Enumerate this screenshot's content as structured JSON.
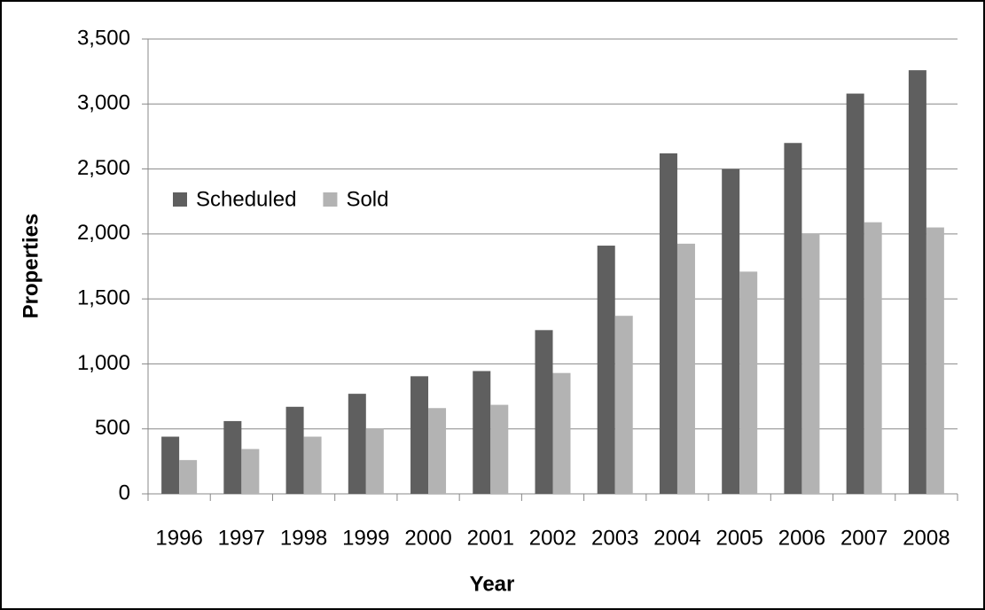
{
  "chart_data": {
    "type": "bar",
    "x_label": "Year",
    "y_label": "Properties",
    "categories": [
      "1996",
      "1997",
      "1998",
      "1999",
      "2000",
      "2001",
      "2002",
      "2003",
      "2004",
      "2005",
      "2006",
      "2007",
      "2008"
    ],
    "series": [
      {
        "name": "Scheduled",
        "color": "#5f5f5f",
        "values": [
          440,
          560,
          670,
          770,
          905,
          945,
          1260,
          1910,
          2620,
          2500,
          2700,
          3080,
          3260
        ]
      },
      {
        "name": "Sold",
        "color": "#b3b3b3",
        "values": [
          260,
          345,
          440,
          505,
          660,
          685,
          930,
          1370,
          1925,
          1710,
          2005,
          2090,
          2050
        ]
      }
    ],
    "ylim": [
      0,
      3500
    ],
    "yticks": [
      0,
      500,
      {
        "value": 1000,
        "label": "1,000"
      },
      {
        "value": 1500,
        "label": "1,500"
      },
      {
        "value": 2000,
        "label": "2,000"
      },
      {
        "value": 2500,
        "label": "2,500"
      },
      {
        "value": 3000,
        "label": "3,000"
      },
      {
        "value": 3500,
        "label": "3,500"
      }
    ],
    "grid": true,
    "legend": "upper-left"
  }
}
